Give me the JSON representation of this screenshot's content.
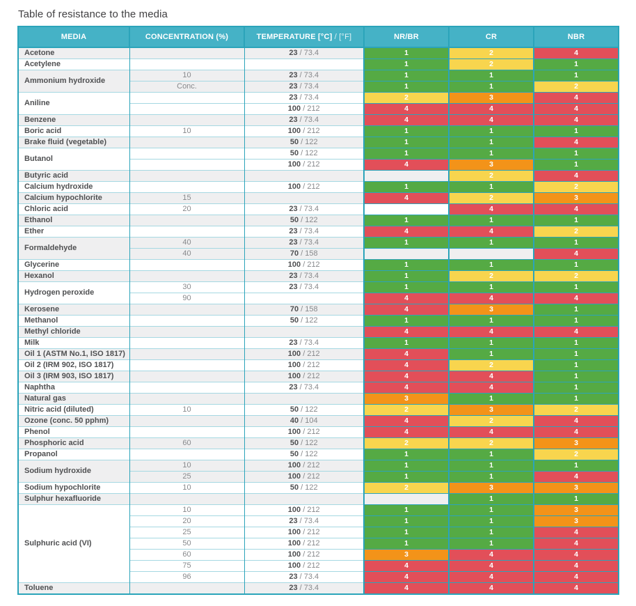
{
  "title": "Table of resistance to the media",
  "table": {
    "header": {
      "media": "MEDIA",
      "concentration": "CONCENTRATION (%)",
      "temperature_bold": "TEMPERATURE [°C]",
      "temperature_light": " / [°F]",
      "nrbr": "NR/BR",
      "cr": "CR",
      "nbr": "NBR"
    },
    "rating_colors": {
      "1": "#55aa44",
      "2": "#f8d54e",
      "3": "#f39319",
      "4": "#e24f59"
    },
    "stripe_colors": {
      "gray": "#efeff0",
      "white": "#ffffff"
    },
    "groups": [
      {
        "media": "Acetone",
        "rows": [
          {
            "conc": "",
            "tc": "23",
            "tf": "73.4",
            "r": [
              1,
              2,
              4
            ]
          }
        ]
      },
      {
        "media": "Acetylene",
        "rows": [
          {
            "conc": "",
            "tc": null,
            "tf": null,
            "r": [
              1,
              2,
              1
            ]
          }
        ]
      },
      {
        "media": "Ammonium hydroxide",
        "rows": [
          {
            "conc": "10",
            "tc": "23",
            "tf": "73.4",
            "r": [
              1,
              1,
              1
            ]
          },
          {
            "conc": "Conc.",
            "tc": "23",
            "tf": "73.4",
            "r": [
              1,
              1,
              2
            ]
          }
        ]
      },
      {
        "media": "Aniline",
        "rows": [
          {
            "conc": "",
            "tc": "23",
            "tf": "73.4",
            "r": [
              2,
              3,
              4
            ]
          },
          {
            "conc": "",
            "tc": "100",
            "tf": "212",
            "r": [
              4,
              4,
              4
            ]
          }
        ]
      },
      {
        "media": "Benzene",
        "rows": [
          {
            "conc": "",
            "tc": "23",
            "tf": "73.4",
            "r": [
              4,
              4,
              4
            ]
          }
        ]
      },
      {
        "media": "Boric acid",
        "rows": [
          {
            "conc": "10",
            "tc": "100",
            "tf": "212",
            "r": [
              1,
              1,
              1
            ]
          }
        ]
      },
      {
        "media": "Brake fluid (vegetable)",
        "rows": [
          {
            "conc": "",
            "tc": "50",
            "tf": "122",
            "r": [
              1,
              1,
              4
            ]
          }
        ]
      },
      {
        "media": "Butanol",
        "rows": [
          {
            "conc": "",
            "tc": "50",
            "tf": "122",
            "r": [
              1,
              1,
              1
            ]
          },
          {
            "conc": "",
            "tc": "100",
            "tf": "212",
            "r": [
              4,
              3,
              1
            ]
          }
        ]
      },
      {
        "media": "Butyric acid",
        "rows": [
          {
            "conc": "",
            "tc": null,
            "tf": null,
            "r": [
              null,
              2,
              4
            ]
          }
        ]
      },
      {
        "media": "Calcium hydroxide",
        "rows": [
          {
            "conc": "",
            "tc": "100",
            "tf": "212",
            "r": [
              1,
              1,
              2
            ]
          }
        ]
      },
      {
        "media": "Calcium hypochlorite",
        "rows": [
          {
            "conc": "15",
            "tc": null,
            "tf": null,
            "r": [
              4,
              2,
              3
            ]
          }
        ]
      },
      {
        "media": "Chloric acid",
        "rows": [
          {
            "conc": "20",
            "tc": "23",
            "tf": "73.4",
            "r": [
              null,
              4,
              4
            ]
          }
        ]
      },
      {
        "media": "Ethanol",
        "rows": [
          {
            "conc": "",
            "tc": "50",
            "tf": "122",
            "r": [
              1,
              1,
              1
            ]
          }
        ]
      },
      {
        "media": "Ether",
        "rows": [
          {
            "conc": "",
            "tc": "23",
            "tf": "73.4",
            "r": [
              4,
              4,
              2
            ]
          }
        ]
      },
      {
        "media": "Formaldehyde",
        "rows": [
          {
            "conc": "40",
            "tc": "23",
            "tf": "73.4",
            "r": [
              1,
              1,
              1
            ]
          },
          {
            "conc": "40",
            "tc": "70",
            "tf": "158",
            "r": [
              null,
              null,
              4
            ]
          }
        ]
      },
      {
        "media": "Glycerine",
        "rows": [
          {
            "conc": "",
            "tc": "100",
            "tf": "212",
            "r": [
              1,
              1,
              1
            ]
          }
        ]
      },
      {
        "media": "Hexanol",
        "rows": [
          {
            "conc": "",
            "tc": "23",
            "tf": "73.4",
            "r": [
              1,
              2,
              2
            ]
          }
        ]
      },
      {
        "media": "Hydrogen peroxide",
        "rows": [
          {
            "conc": "30",
            "tc": "23",
            "tf": "73.4",
            "r": [
              1,
              1,
              1
            ]
          },
          {
            "conc": "90",
            "tc": null,
            "tf": null,
            "r": [
              4,
              4,
              4
            ]
          }
        ]
      },
      {
        "media": "Kerosene",
        "rows": [
          {
            "conc": "",
            "tc": "70",
            "tf": "158",
            "r": [
              4,
              3,
              1
            ]
          }
        ]
      },
      {
        "media": "Methanol",
        "rows": [
          {
            "conc": "",
            "tc": "50",
            "tf": "122",
            "r": [
              1,
              1,
              1
            ]
          }
        ]
      },
      {
        "media": "Methyl chloride",
        "rows": [
          {
            "conc": "",
            "tc": null,
            "tf": null,
            "r": [
              4,
              4,
              4
            ]
          }
        ]
      },
      {
        "media": "Milk",
        "rows": [
          {
            "conc": "",
            "tc": "23",
            "tf": "73.4",
            "r": [
              1,
              1,
              1
            ]
          }
        ]
      },
      {
        "media": "Oil 1 (ASTM No.1, ISO 1817)",
        "rows": [
          {
            "conc": "",
            "tc": "100",
            "tf": "212",
            "r": [
              4,
              1,
              1
            ]
          }
        ]
      },
      {
        "media": "Oil 2 (IRM 902, ISO 1817)",
        "rows": [
          {
            "conc": "",
            "tc": "100",
            "tf": "212",
            "r": [
              4,
              2,
              1
            ]
          }
        ]
      },
      {
        "media": "Oil 3 (IRM 903, ISO 1817)",
        "rows": [
          {
            "conc": "",
            "tc": "100",
            "tf": "212",
            "r": [
              4,
              4,
              1
            ]
          }
        ]
      },
      {
        "media": "Naphtha",
        "rows": [
          {
            "conc": "",
            "tc": "23",
            "tf": "73.4",
            "r": [
              4,
              4,
              1
            ]
          }
        ]
      },
      {
        "media": "Natural gas",
        "rows": [
          {
            "conc": "",
            "tc": null,
            "tf": null,
            "r": [
              3,
              1,
              1
            ]
          }
        ]
      },
      {
        "media": "Nitric acid (diluted)",
        "rows": [
          {
            "conc": "10",
            "tc": "50",
            "tf": "122",
            "r": [
              2,
              3,
              2
            ]
          }
        ]
      },
      {
        "media": "Ozone (conc. 50 pphm)",
        "rows": [
          {
            "conc": "",
            "tc": "40",
            "tf": "104",
            "r": [
              4,
              2,
              4
            ]
          }
        ]
      },
      {
        "media": "Phenol",
        "rows": [
          {
            "conc": "",
            "tc": "100",
            "tf": "212",
            "r": [
              4,
              4,
              4
            ]
          }
        ]
      },
      {
        "media": "Phosphoric acid",
        "rows": [
          {
            "conc": "60",
            "tc": "50",
            "tf": "122",
            "r": [
              2,
              2,
              3
            ]
          }
        ]
      },
      {
        "media": "Propanol",
        "rows": [
          {
            "conc": "",
            "tc": "50",
            "tf": "122",
            "r": [
              1,
              1,
              2
            ]
          }
        ]
      },
      {
        "media": "Sodium hydroxide",
        "rows": [
          {
            "conc": "10",
            "tc": "100",
            "tf": "212",
            "r": [
              1,
              1,
              1
            ]
          },
          {
            "conc": "25",
            "tc": "100",
            "tf": "212",
            "r": [
              1,
              1,
              4
            ]
          }
        ]
      },
      {
        "media": "Sodium hypochlorite",
        "rows": [
          {
            "conc": "10",
            "tc": "50",
            "tf": "122",
            "r": [
              2,
              3,
              3
            ]
          }
        ]
      },
      {
        "media": "Sulphur hexafluoride",
        "rows": [
          {
            "conc": "",
            "tc": null,
            "tf": null,
            "r": [
              null,
              1,
              1
            ]
          }
        ]
      },
      {
        "media": "Sulphuric acid (VI)",
        "rows": [
          {
            "conc": "10",
            "tc": "100",
            "tf": "212",
            "r": [
              1,
              1,
              3
            ]
          },
          {
            "conc": "20",
            "tc": "23",
            "tf": "73.4",
            "r": [
              1,
              1,
              3
            ]
          },
          {
            "conc": "25",
            "tc": "100",
            "tf": "212",
            "r": [
              1,
              1,
              4
            ]
          },
          {
            "conc": "50",
            "tc": "100",
            "tf": "212",
            "r": [
              1,
              1,
              4
            ]
          },
          {
            "conc": "60",
            "tc": "100",
            "tf": "212",
            "r": [
              3,
              4,
              4
            ]
          },
          {
            "conc": "75",
            "tc": "100",
            "tf": "212",
            "r": [
              4,
              4,
              4
            ]
          },
          {
            "conc": "96",
            "tc": "23",
            "tf": "73.4",
            "r": [
              4,
              4,
              4
            ]
          }
        ]
      },
      {
        "media": "Toluene",
        "rows": [
          {
            "conc": "",
            "tc": "23",
            "tf": "73.4",
            "r": [
              4,
              4,
              4
            ]
          }
        ]
      }
    ]
  }
}
